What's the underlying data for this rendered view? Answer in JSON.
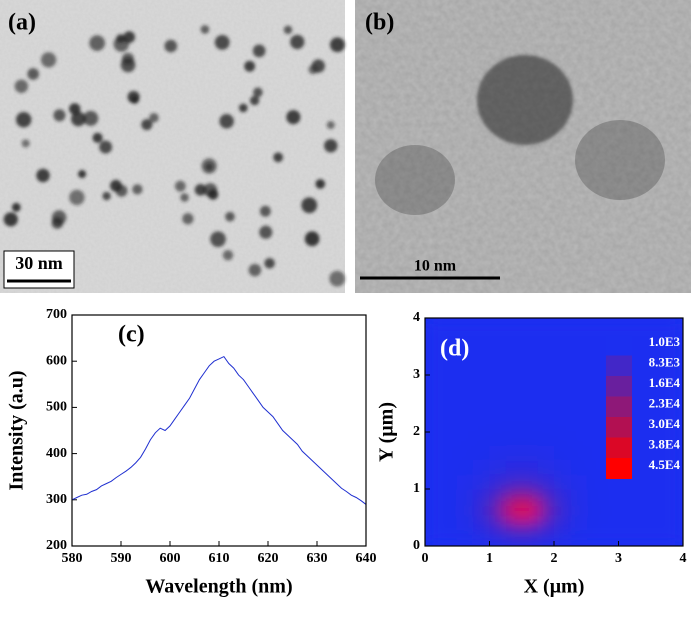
{
  "panels": [
    {
      "label": "(a)",
      "scale_bar": "30 nm"
    },
    {
      "label": "(b)",
      "scale_bar": "10 nm"
    }
  ],
  "chart_data": [
    {
      "type": "line",
      "label": "(c)",
      "x_label": "Wavelength (nm)",
      "y_label": "Intensity (a.u)",
      "x": [
        580,
        581,
        582,
        583,
        584,
        585,
        586,
        587,
        588,
        589,
        590,
        591,
        592,
        593,
        594,
        595,
        596,
        597,
        598,
        599,
        600,
        601,
        602,
        603,
        604,
        605,
        606,
        607,
        608,
        609,
        610,
        611,
        612,
        613,
        614,
        615,
        616,
        617,
        618,
        619,
        620,
        621,
        622,
        623,
        624,
        625,
        626,
        627,
        628,
        629,
        630,
        631,
        632,
        633,
        634,
        635,
        636,
        637,
        638,
        639,
        640
      ],
      "series": [
        {
          "color": "#1f2fd0",
          "values": [
            300,
            305,
            310,
            312,
            318,
            322,
            330,
            335,
            340,
            348,
            355,
            362,
            370,
            380,
            392,
            410,
            430,
            445,
            455,
            450,
            460,
            475,
            490,
            505,
            520,
            540,
            560,
            575,
            590,
            600,
            605,
            610,
            595,
            585,
            570,
            560,
            545,
            530,
            515,
            500,
            490,
            480,
            465,
            450,
            440,
            430,
            420,
            405,
            395,
            385,
            375,
            365,
            355,
            345,
            335,
            325,
            318,
            310,
            305,
            298,
            290
          ]
        }
      ],
      "xlim": [
        580,
        640
      ],
      "ylim": [
        200,
        700
      ],
      "xticks": [
        580,
        590,
        600,
        610,
        620,
        630,
        640
      ],
      "yticks": [
        200,
        300,
        400,
        500,
        600,
        700
      ]
    },
    {
      "type": "heatmap",
      "label": "(d)",
      "x_label": "X (μm)",
      "y_label": "Y (μm)",
      "xlim": [
        0,
        4
      ],
      "ylim": [
        0,
        4
      ],
      "xticks": [
        0,
        1,
        2,
        3,
        4
      ],
      "yticks": [
        0,
        1,
        2,
        3,
        4
      ],
      "x": [
        0.125,
        0.375,
        0.625,
        0.875,
        1.125,
        1.375,
        1.625,
        1.875,
        2.125,
        2.375,
        2.625,
        2.875,
        3.125,
        3.375,
        3.625,
        3.875
      ],
      "y": [
        0.125,
        0.375,
        0.625,
        0.875,
        1.125,
        1.375,
        1.625,
        1.875,
        2.125,
        2.375,
        2.625,
        2.875,
        3.125,
        3.375,
        3.625,
        3.875
      ],
      "z": [
        [
          1000,
          1000,
          1500,
          2500,
          4000,
          5500,
          5500,
          4000,
          2500,
          1500,
          1000,
          1000,
          1000,
          1000,
          1000,
          1000
        ],
        [
          1000,
          1200,
          2000,
          4000,
          8000,
          14000,
          14000,
          8000,
          4000,
          2000,
          1200,
          1000,
          1000,
          1000,
          1000,
          1000
        ],
        [
          1000,
          1300,
          2500,
          6000,
          16000,
          42000,
          45000,
          16000,
          6000,
          2500,
          1300,
          1000,
          1000,
          1000,
          1000,
          1000
        ],
        [
          1000,
          1200,
          2200,
          4500,
          10000,
          20000,
          20000,
          10000,
          4500,
          2200,
          1200,
          1000,
          1000,
          1000,
          1000,
          1000
        ],
        [
          1000,
          1100,
          1800,
          3000,
          5000,
          7000,
          7000,
          5000,
          3000,
          1800,
          1100,
          1000,
          1000,
          1000,
          1000,
          1000
        ],
        [
          1000,
          1000,
          1400,
          2000,
          3000,
          3500,
          3500,
          3000,
          2000,
          1400,
          1000,
          1000,
          1000,
          1000,
          1000,
          1000
        ],
        [
          1000,
          1000,
          1200,
          1500,
          2000,
          2200,
          2200,
          2000,
          1500,
          1200,
          1000,
          1000,
          1000,
          1000,
          1000,
          1000
        ],
        [
          1000,
          1000,
          1000,
          1200,
          1400,
          1500,
          1500,
          1400,
          1200,
          1000,
          1000,
          1000,
          1000,
          1000,
          1000,
          1000
        ],
        [
          1000,
          1000,
          1000,
          1000,
          1000,
          1000,
          1000,
          1000,
          1000,
          1000,
          1000,
          1000,
          1000,
          1000,
          1000,
          1000
        ],
        [
          1000,
          1000,
          1000,
          1000,
          1000,
          1000,
          1000,
          1000,
          1000,
          1000,
          1000,
          1000,
          1000,
          1000,
          1000,
          1000
        ],
        [
          1000,
          1000,
          1000,
          1000,
          1000,
          1000,
          1000,
          1000,
          1000,
          1000,
          1000,
          1000,
          1000,
          1000,
          1000,
          1000
        ],
        [
          1000,
          1000,
          1000,
          1000,
          1000,
          1000,
          1000,
          1000,
          1000,
          1000,
          1000,
          1000,
          1000,
          1000,
          1000,
          1000
        ],
        [
          1000,
          1000,
          1000,
          1000,
          1000,
          1000,
          1000,
          1000,
          1000,
          1000,
          1000,
          1000,
          1000,
          1000,
          1000,
          1000
        ],
        [
          1000,
          1000,
          1000,
          1000,
          1000,
          1000,
          1000,
          1000,
          1000,
          1000,
          1000,
          1000,
          1000,
          1000,
          1000,
          1000
        ],
        [
          1000,
          1000,
          1000,
          1000,
          1000,
          1000,
          1000,
          1000,
          1000,
          1000,
          1000,
          1000,
          1000,
          1000,
          1000,
          1000
        ],
        [
          1000,
          1000,
          1000,
          1000,
          1000,
          1000,
          1000,
          1000,
          1000,
          1000,
          1000,
          1000,
          1000,
          1000,
          1000,
          1000
        ]
      ],
      "colorbar": [
        {
          "value": 1000,
          "label": "1.0E3"
        },
        {
          "value": 8300,
          "label": "8.3E3"
        },
        {
          "value": 16000,
          "label": "1.6E4"
        },
        {
          "value": 23000,
          "label": "2.3E4"
        },
        {
          "value": 30000,
          "label": "3.0E4"
        },
        {
          "value": 38000,
          "label": "3.8E4"
        },
        {
          "value": 45000,
          "label": "4.5E4"
        }
      ],
      "colors": [
        "#1c2ff0",
        "#ff0000"
      ]
    }
  ]
}
